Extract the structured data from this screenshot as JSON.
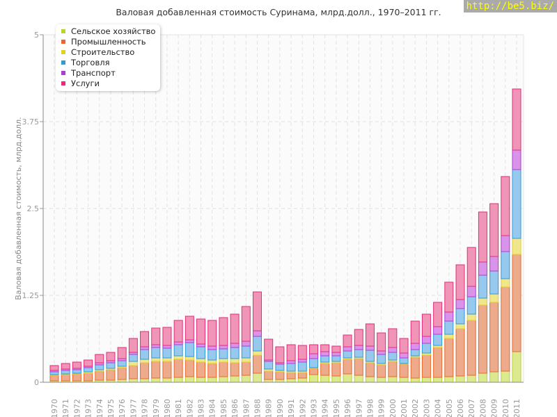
{
  "chart_data": {
    "type": "bar",
    "stacked": true,
    "title": "Валовая добавленная стоимость Суринама, млрд.долл., 1970–2011 гг.",
    "xlabel": "",
    "ylabel": "Валовая добавленная стоимость, млрд.долл.",
    "ylim": [
      0,
      5
    ],
    "yticks": [
      "0",
      "1.25",
      "2.5",
      "3.75",
      "5"
    ],
    "legend_position": "top-left",
    "categories": [
      "1970",
      "1971",
      "1972",
      "1973",
      "1974",
      "1975",
      "1976",
      "1977",
      "1978",
      "1979",
      "1980",
      "1981",
      "1982",
      "1983",
      "1984",
      "1985",
      "1986",
      "1987",
      "1988",
      "1989",
      "1990",
      "1991",
      "1992",
      "1993",
      "1994",
      "1995",
      "1996",
      "1997",
      "1998",
      "1999",
      "2000",
      "2001",
      "2002",
      "2003",
      "2004",
      "2005",
      "2006",
      "2007",
      "2008",
      "2009",
      "2010",
      "2011"
    ],
    "series": [
      {
        "name": "Сельское хозяйство",
        "fill": "#dde98f",
        "stroke": "#b8d430",
        "values": [
          0.02,
          0.02,
          0.02,
          0.02,
          0.03,
          0.03,
          0.04,
          0.05,
          0.05,
          0.06,
          0.06,
          0.07,
          0.08,
          0.07,
          0.07,
          0.08,
          0.09,
          0.1,
          0.13,
          0.04,
          0.04,
          0.05,
          0.06,
          0.11,
          0.1,
          0.09,
          0.12,
          0.1,
          0.08,
          0.07,
          0.08,
          0.07,
          0.06,
          0.07,
          0.07,
          0.08,
          0.09,
          0.1,
          0.13,
          0.15,
          0.16,
          0.44
        ]
      },
      {
        "name": "Промышленность",
        "fill": "#eeab8c",
        "stroke": "#e8692e",
        "values": [
          0.08,
          0.09,
          0.1,
          0.11,
          0.13,
          0.15,
          0.17,
          0.19,
          0.23,
          0.24,
          0.24,
          0.26,
          0.24,
          0.22,
          0.2,
          0.21,
          0.19,
          0.19,
          0.26,
          0.12,
          0.11,
          0.09,
          0.08,
          0.09,
          0.17,
          0.19,
          0.21,
          0.24,
          0.2,
          0.18,
          0.22,
          0.19,
          0.3,
          0.32,
          0.43,
          0.55,
          0.68,
          0.79,
          0.98,
          1.0,
          1.21,
          1.4
        ]
      },
      {
        "name": "Строительство",
        "fill": "#f0e68c",
        "stroke": "#e3cf2a",
        "values": [
          0.01,
          0.01,
          0.01,
          0.02,
          0.02,
          0.02,
          0.02,
          0.06,
          0.05,
          0.05,
          0.05,
          0.05,
          0.05,
          0.05,
          0.05,
          0.05,
          0.06,
          0.06,
          0.06,
          0.03,
          0.02,
          0.02,
          0.02,
          0.01,
          0.02,
          0.02,
          0.02,
          0.02,
          0.02,
          0.02,
          0.02,
          0.01,
          0.02,
          0.03,
          0.03,
          0.06,
          0.07,
          0.09,
          0.1,
          0.12,
          0.12,
          0.23
        ]
      },
      {
        "name": "Торговля",
        "fill": "#96c9ed",
        "stroke": "#2f9ad8",
        "values": [
          0.04,
          0.05,
          0.05,
          0.06,
          0.07,
          0.08,
          0.08,
          0.1,
          0.14,
          0.15,
          0.14,
          0.16,
          0.2,
          0.17,
          0.15,
          0.14,
          0.16,
          0.17,
          0.21,
          0.11,
          0.09,
          0.11,
          0.13,
          0.13,
          0.09,
          0.08,
          0.1,
          0.11,
          0.16,
          0.13,
          0.11,
          0.08,
          0.09,
          0.14,
          0.16,
          0.19,
          0.22,
          0.25,
          0.33,
          0.33,
          0.39,
          0.99
        ]
      },
      {
        "name": "Транспорт",
        "fill": "#d993e9",
        "stroke": "#b03ad8",
        "values": [
          0.02,
          0.02,
          0.02,
          0.02,
          0.03,
          0.03,
          0.03,
          0.03,
          0.04,
          0.04,
          0.04,
          0.04,
          0.04,
          0.04,
          0.05,
          0.05,
          0.06,
          0.07,
          0.08,
          0.02,
          0.02,
          0.04,
          0.04,
          0.07,
          0.06,
          0.05,
          0.06,
          0.06,
          0.06,
          0.05,
          0.07,
          0.07,
          0.09,
          0.1,
          0.11,
          0.13,
          0.13,
          0.15,
          0.19,
          0.21,
          0.23,
          0.28
        ]
      },
      {
        "name": "Услуги",
        "fill": "#f095b7",
        "stroke": "#e22d78",
        "values": [
          0.07,
          0.08,
          0.09,
          0.09,
          0.12,
          0.12,
          0.16,
          0.2,
          0.22,
          0.24,
          0.26,
          0.31,
          0.34,
          0.36,
          0.37,
          0.4,
          0.42,
          0.5,
          0.56,
          0.3,
          0.23,
          0.23,
          0.2,
          0.13,
          0.1,
          0.09,
          0.17,
          0.23,
          0.32,
          0.26,
          0.27,
          0.21,
          0.32,
          0.32,
          0.35,
          0.43,
          0.5,
          0.56,
          0.72,
          0.76,
          0.85,
          0.88
        ]
      }
    ]
  },
  "watermark": "http://be5.biz/"
}
